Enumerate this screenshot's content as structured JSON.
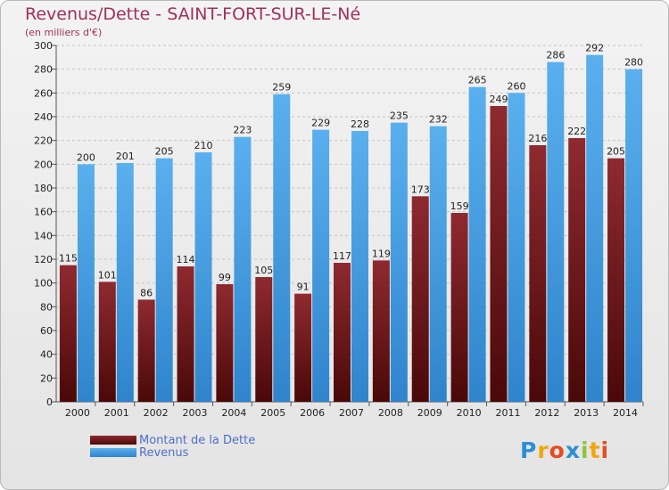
{
  "title": "Revenus/Dette - SAINT-FORT-SUR-LE-Né",
  "subtitle": "(en milliers d'€)",
  "logo": {
    "text": "Proxiti",
    "letters": [
      "P",
      "r",
      "o",
      "x",
      "i",
      "t",
      "i"
    ],
    "colors": [
      "#2a8fd6",
      "#f2a50c",
      "#e64b22",
      "#2a8fd6",
      "#8bc53f",
      "#f2a50c",
      "#e64b22"
    ]
  },
  "legend": [
    {
      "label": "Montant de la Dette",
      "color": "#7a1f26"
    },
    {
      "label": "Revenus",
      "color": "#4aa2e4"
    }
  ],
  "chart_data": {
    "type": "bar",
    "title": "Revenus/Dette - SAINT-FORT-SUR-LE-Né",
    "subtitle": "(en milliers d'€)",
    "categories": [
      "2000",
      "2001",
      "2002",
      "2003",
      "2004",
      "2005",
      "2006",
      "2007",
      "2008",
      "2009",
      "2010",
      "2011",
      "2012",
      "2013",
      "2014"
    ],
    "series": [
      {
        "name": "Montant de la Dette",
        "color": "#7a1f26",
        "values": [
          115,
          101,
          86,
          114,
          99,
          105,
          91,
          117,
          119,
          173,
          159,
          249,
          216,
          222,
          205
        ]
      },
      {
        "name": "Revenus",
        "color": "#4aa2e4",
        "values": [
          200,
          201,
          205,
          210,
          223,
          259,
          229,
          228,
          235,
          232,
          265,
          260,
          286,
          292,
          280
        ]
      }
    ],
    "ylim": [
      0,
      300
    ],
    "yticks": [
      0,
      20,
      40,
      60,
      80,
      100,
      120,
      140,
      160,
      180,
      200,
      220,
      240,
      260,
      280,
      300
    ],
    "grid": true,
    "legend_position": "bottom-left"
  }
}
